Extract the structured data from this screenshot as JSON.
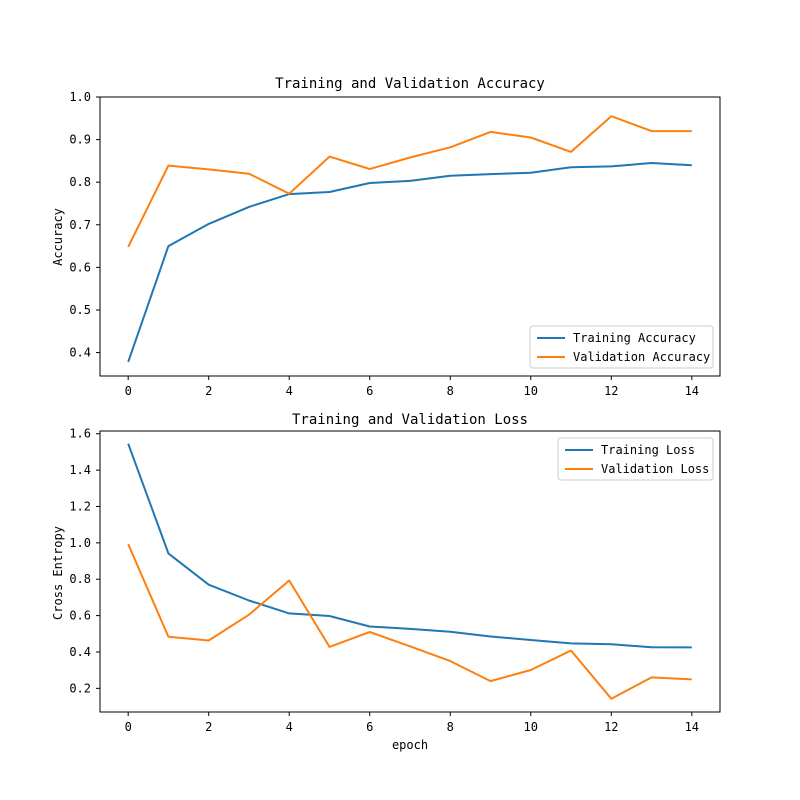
{
  "chart_data": [
    {
      "type": "line",
      "title": "Training and Validation Accuracy",
      "xlabel": "",
      "ylabel": "Accuracy",
      "xlim": [
        -0.7,
        14.7
      ],
      "ylim": [
        0.345,
        1.0
      ],
      "xticks": [
        0,
        2,
        4,
        6,
        8,
        10,
        12,
        14
      ],
      "xtick_labels": [
        "0",
        "2",
        "4",
        "6",
        "8",
        "10",
        "12",
        "14"
      ],
      "yticks": [
        0.4,
        0.5,
        0.6,
        0.7,
        0.8,
        0.9,
        1.0
      ],
      "ytick_labels": [
        "0.4",
        "0.5",
        "0.6",
        "0.7",
        "0.8",
        "0.9",
        "1.0"
      ],
      "grid": false,
      "legend_position": "lower-right",
      "x": [
        0,
        1,
        2,
        3,
        4,
        5,
        6,
        7,
        8,
        9,
        10,
        11,
        12,
        13,
        14
      ],
      "series": [
        {
          "name": "Training Accuracy",
          "color": "#1f77b4",
          "values": [
            0.378,
            0.65,
            0.702,
            0.742,
            0.772,
            0.777,
            0.798,
            0.803,
            0.815,
            0.819,
            0.822,
            0.835,
            0.837,
            0.845,
            0.84
          ]
        },
        {
          "name": "Validation Accuracy",
          "color": "#ff7f0e",
          "values": [
            0.648,
            0.839,
            0.83,
            0.82,
            0.773,
            0.86,
            0.831,
            0.858,
            0.882,
            0.918,
            0.905,
            0.871,
            0.955,
            0.92,
            0.92
          ]
        }
      ]
    },
    {
      "type": "line",
      "title": "Training and Validation Loss",
      "xlabel": "epoch",
      "ylabel": "Cross Entropy",
      "xlim": [
        -0.7,
        14.7
      ],
      "ylim": [
        0.07,
        1.615
      ],
      "xticks": [
        0,
        2,
        4,
        6,
        8,
        10,
        12,
        14
      ],
      "xtick_labels": [
        "0",
        "2",
        "4",
        "6",
        "8",
        "10",
        "12",
        "14"
      ],
      "yticks": [
        0.2,
        0.4,
        0.6,
        0.8,
        1.0,
        1.2,
        1.4,
        1.6
      ],
      "ytick_labels": [
        "0.2",
        "0.4",
        "0.6",
        "0.8",
        "1.0",
        "1.2",
        "1.4",
        "1.6"
      ],
      "grid": false,
      "legend_position": "upper-right",
      "x": [
        0,
        1,
        2,
        3,
        4,
        5,
        6,
        7,
        8,
        9,
        10,
        11,
        12,
        13,
        14
      ],
      "series": [
        {
          "name": "Training Loss",
          "color": "#1f77b4",
          "values": [
            1.545,
            0.942,
            0.77,
            0.683,
            0.612,
            0.598,
            0.54,
            0.527,
            0.511,
            0.485,
            0.466,
            0.447,
            0.443,
            0.426,
            0.425
          ]
        },
        {
          "name": "Validation Loss",
          "color": "#ff7f0e",
          "values": [
            0.993,
            0.484,
            0.463,
            0.605,
            0.793,
            0.428,
            0.51,
            0.431,
            0.35,
            0.24,
            0.301,
            0.408,
            0.143,
            0.26,
            0.249
          ]
        }
      ]
    }
  ]
}
